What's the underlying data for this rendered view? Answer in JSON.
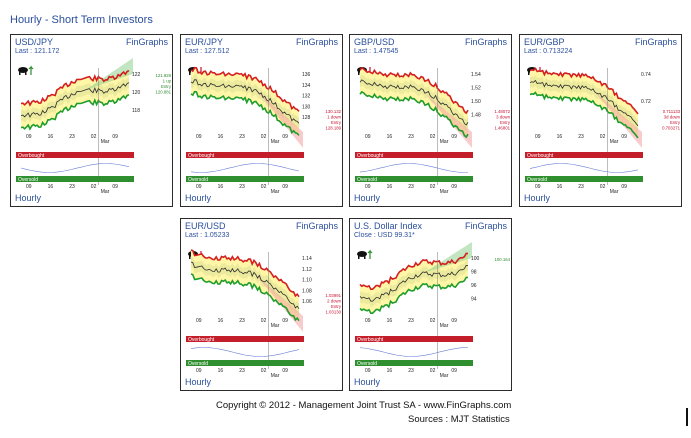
{
  "page_title": "Hourly - Short Term Investors",
  "footer": {
    "copyright": "Copyright © 2012 - Management Joint Trust SA - www.FinGraphs.com",
    "sources": "Sources :  MJT Statistics"
  },
  "panels": [
    {
      "pair": "USD/JPY",
      "brand": "FinGraphs",
      "last": "Last : 121.172",
      "footer": "Hourly",
      "ticks": [
        "122",
        "120",
        "118"
      ],
      "dates": [
        "09",
        "16",
        "23",
        "02",
        "09"
      ],
      "month": "Mar",
      "target_values": [
        "121.828",
        "1 up",
        "Entry",
        "120.881"
      ],
      "overbought": "Overbought",
      "oversold": "Oversold",
      "trend": "up",
      "accent": "#2e8b2e"
    },
    {
      "pair": "EUR/JPY",
      "brand": "FinGraphs",
      "last": "Last : 127.512",
      "footer": "Hourly",
      "ticks": [
        "136",
        "134",
        "132",
        "130",
        "128"
      ],
      "dates": [
        "09",
        "16",
        "23",
        "02",
        "09"
      ],
      "month": "Mar",
      "target_values": [
        "130.132",
        "1 down",
        "Entry",
        "128.189"
      ],
      "overbought": "Overbought",
      "oversold": "Oversold",
      "trend": "down",
      "accent": "#c8102e"
    },
    {
      "pair": "GBP/USD",
      "brand": "FinGraphs",
      "last": "Last : 1.47545",
      "footer": "Hourly",
      "ticks": [
        "1.54",
        "1.52",
        "1.50",
        "1.48"
      ],
      "dates": [
        "09",
        "16",
        "23",
        "02",
        "09"
      ],
      "month": "Mar",
      "target_values": [
        "1.48072",
        "3 down",
        "Entry",
        "1.46801"
      ],
      "overbought": "Overbought",
      "oversold": "Oversold",
      "trend": "down",
      "accent": "#c8102e"
    },
    {
      "pair": "EUR/GBP",
      "brand": "FinGraphs",
      "last": "Last : 0.713224",
      "footer": "Hourly",
      "ticks": [
        "0.74",
        "0.72"
      ],
      "dates": [
        "09",
        "16",
        "23",
        "02",
        "09"
      ],
      "month": "Mar",
      "target_values": [
        "0.711133",
        "3d down",
        "Entry",
        "0.703271"
      ],
      "overbought": "Overbought",
      "oversold": "Oversold",
      "trend": "down",
      "accent": "#c8102e"
    },
    {
      "pair": "EUR/USD",
      "brand": "FinGraphs",
      "last": "Last : 1.05233",
      "footer": "Hourly",
      "ticks": [
        "1.14",
        "1.12",
        "1.10",
        "1.08",
        "1.06"
      ],
      "dates": [
        "09",
        "16",
        "23",
        "02",
        "09"
      ],
      "month": "Mar",
      "target_values": [
        "1.03991",
        "2 down",
        "Entry",
        "1.03130"
      ],
      "overbought": "Overbought",
      "oversold": "Oversold",
      "trend": "down",
      "accent": "#c8102e"
    },
    {
      "pair": "U.S. Dollar Index",
      "brand": "FinGraphs",
      "last": "Close : USD 99.31*",
      "footer": "Hourly",
      "ticks": [
        "100",
        "98",
        "96",
        "94"
      ],
      "dates": [
        "09",
        "16",
        "23",
        "02",
        "09"
      ],
      "month": "Mar",
      "target_values": [
        "100.164"
      ],
      "overbought": "Overbought",
      "oversold": "Oversold",
      "trend": "up",
      "accent": "#2e8b2e"
    }
  ]
}
